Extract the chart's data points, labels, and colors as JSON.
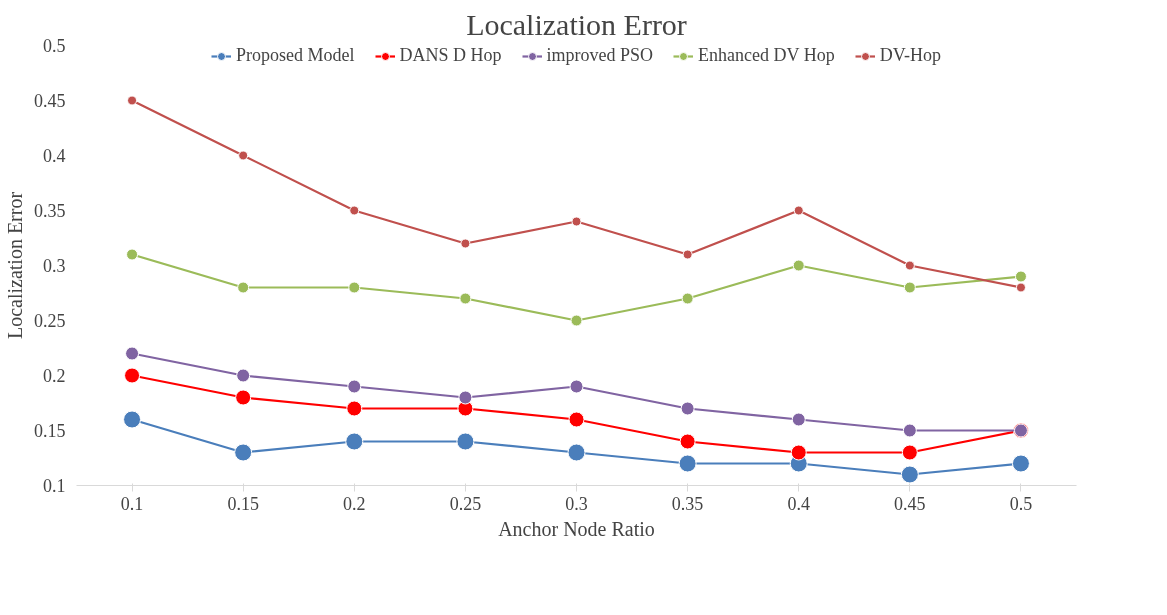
{
  "chart_data": {
    "type": "line",
    "title": "Localization Error",
    "xlabel": "Anchor Node Ratio",
    "ylabel": "Localization Error",
    "categories": [
      "0.1",
      "0.15",
      "0.2",
      "0.25",
      "0.3",
      "0.35",
      "0.4",
      "0.45",
      "0.5"
    ],
    "series": [
      {
        "name": "Proposed Model",
        "color": "#4a7ebb",
        "values": [
          0.16,
          0.13,
          0.14,
          0.14,
          0.13,
          0.12,
          0.12,
          0.11,
          0.12
        ]
      },
      {
        "name": "DANS D Hop",
        "color": "#ff0000",
        "values": [
          0.2,
          0.18,
          0.17,
          0.17,
          0.16,
          0.14,
          0.13,
          0.13,
          0.15
        ]
      },
      {
        "name": "improved PSO",
        "color": "#8064a2",
        "values": [
          0.22,
          0.2,
          0.19,
          0.18,
          0.19,
          0.17,
          0.16,
          0.15,
          0.15
        ]
      },
      {
        "name": "Enhanced DV Hop",
        "color": "#9bbb59",
        "values": [
          0.31,
          0.28,
          0.28,
          0.27,
          0.25,
          0.27,
          0.3,
          0.28,
          0.29
        ]
      },
      {
        "name": "DV-Hop",
        "color": "#c0504d",
        "values": [
          0.45,
          0.4,
          0.35,
          0.32,
          0.34,
          0.31,
          0.35,
          0.3,
          0.28
        ]
      }
    ],
    "ylim": [
      0.1,
      0.5
    ],
    "yticks": [
      0.1,
      0.15,
      0.2,
      0.25,
      0.3,
      0.35,
      0.4,
      0.45,
      0.5
    ],
    "grid": false,
    "legend": "top",
    "marker": "circle",
    "line_style": "solid"
  }
}
